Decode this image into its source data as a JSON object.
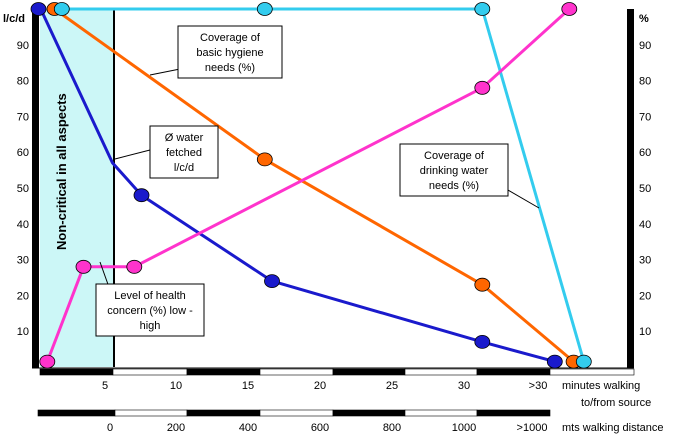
{
  "chart_data": {
    "type": "line",
    "y_label_left": "l/c/d",
    "y_label_right": "%",
    "y_ticks": [
      10,
      20,
      30,
      40,
      50,
      60,
      70,
      80,
      90
    ],
    "ylim": [
      0,
      100
    ],
    "x_minutes_ticks": [
      "5",
      "10",
      "15",
      "20",
      "25",
      "30",
      ">30"
    ],
    "x_minutes_label": [
      "minutes walking",
      "to/from source"
    ],
    "x_distance_ticks": [
      "0",
      "200",
      "400",
      "600",
      "800",
      "1000",
      ">1000"
    ],
    "x_distance_label": "mts walking distance",
    "band_label": "Non-critical in all aspects",
    "series": [
      {
        "key": "water_fetched",
        "color": "#1a1acc",
        "points": [
          [
            -0.1,
            100
          ],
          [
            0.05,
            100
          ],
          [
            5,
            57
          ],
          [
            7,
            48
          ],
          [
            16,
            24
          ],
          [
            30.5,
            7
          ],
          [
            35.5,
            1.5
          ]
        ]
      },
      {
        "key": "hygiene",
        "color": "#ff6600",
        "points": [
          [
            1,
            100
          ],
          [
            15.5,
            58
          ],
          [
            30.5,
            23
          ],
          [
            36.8,
            1.5
          ]
        ]
      },
      {
        "key": "drinking",
        "color": "#33ccee",
        "points": [
          [
            1.5,
            100
          ],
          [
            15.5,
            100
          ],
          [
            30.5,
            100
          ],
          [
            37.5,
            1.5
          ]
        ]
      },
      {
        "key": "health",
        "color": "#ff33cc",
        "points": [
          [
            0.5,
            1.5
          ],
          [
            3,
            28
          ],
          [
            6.5,
            28
          ],
          [
            30.5,
            78
          ],
          [
            36.5,
            100
          ]
        ]
      }
    ],
    "markers": [
      {
        "series": "water_fetched",
        "x": -0.1,
        "y": 100
      },
      {
        "series": "water_fetched",
        "x": 7,
        "y": 48
      },
      {
        "series": "water_fetched",
        "x": 16,
        "y": 24
      },
      {
        "series": "water_fetched",
        "x": 30.5,
        "y": 7
      },
      {
        "series": "water_fetched",
        "x": 35.5,
        "y": 1.5
      },
      {
        "series": "hygiene",
        "x": 1,
        "y": 100
      },
      {
        "series": "hygiene",
        "x": 15.5,
        "y": 58
      },
      {
        "series": "hygiene",
        "x": 30.5,
        "y": 23
      },
      {
        "series": "hygiene",
        "x": 36.8,
        "y": 1.5
      },
      {
        "series": "drinking",
        "x": 1.5,
        "y": 100
      },
      {
        "series": "drinking",
        "x": 15.5,
        "y": 100
      },
      {
        "series": "drinking",
        "x": 30.5,
        "y": 100
      },
      {
        "series": "drinking",
        "x": 37.5,
        "y": 1.5
      },
      {
        "series": "health",
        "x": 0.5,
        "y": 1.5
      },
      {
        "series": "health",
        "x": 3,
        "y": 28
      },
      {
        "series": "health",
        "x": 6.5,
        "y": 28
      },
      {
        "series": "health",
        "x": 30.5,
        "y": 78
      },
      {
        "series": "health",
        "x": 36.5,
        "y": 100
      }
    ],
    "annotations": {
      "hygiene": [
        "Coverage of",
        "basic hygiene",
        "needs (%)"
      ],
      "water": [
        "Ø water",
        "fetched",
        "l/c/d"
      ],
      "drinking": [
        "Coverage of",
        "drinking water",
        "needs (%)"
      ],
      "health": [
        "Level of health",
        "concern (%) low -",
        "high"
      ]
    }
  }
}
